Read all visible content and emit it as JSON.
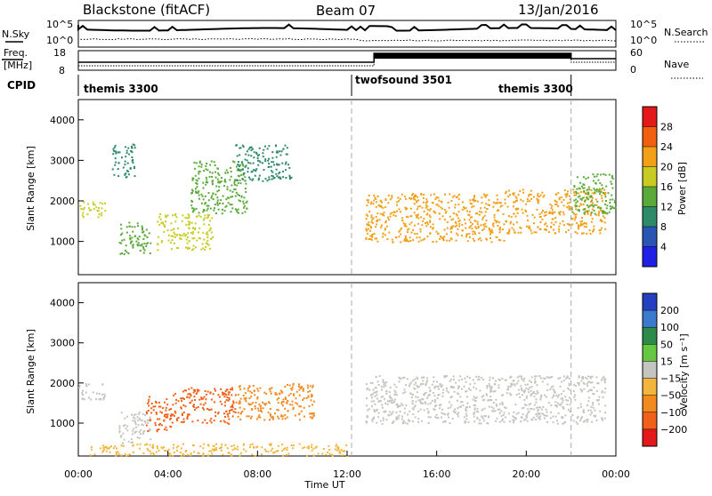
{
  "header": {
    "station": "Blackstone (fitACF)",
    "beam": "Beam 07",
    "date": "13/Jan/2016"
  },
  "top_panels": {
    "nsky_label": "N.Sky",
    "nsky_ticks": [
      "10^5",
      "10^0"
    ],
    "nsearch_label": "N.Search",
    "nsearch_ticks": [
      "10^5",
      "10^0"
    ],
    "freq_label": "Freq.",
    "freq_unit": "[MHz]",
    "freq_ticks": [
      "18",
      "8"
    ],
    "nave_label": "Nave",
    "nave_ticks": [
      "60",
      "0"
    ],
    "cpid_label": "CPID",
    "cpid_segments": [
      {
        "name": "themis 3300",
        "start_hour": 0,
        "end_hour": 12.2
      },
      {
        "name": "twofsound 3501",
        "start_hour": 12.2,
        "end_hour": 22.0
      },
      {
        "name": "themis 3300",
        "start_hour": 22.0,
        "end_hour": 24
      }
    ]
  },
  "axes": {
    "y_label": "Slant Range [km]",
    "y_ticks": [
      "4000",
      "3000",
      "2000",
      "1000"
    ],
    "x_label": "Time UT",
    "x_ticks": [
      "00:00",
      "04:00",
      "08:00",
      "12:00",
      "16:00",
      "20:00",
      "00:00"
    ]
  },
  "colorbars": {
    "power": {
      "label": "Power [dB]",
      "ticks": [
        "28",
        "24",
        "20",
        "16",
        "12",
        "8",
        "4"
      ],
      "colors": [
        "#1f1fe6",
        "#2b55b5",
        "#2f8a6a",
        "#5aaa3a",
        "#c8cc22",
        "#f2a018",
        "#f06010",
        "#e41a1a"
      ]
    },
    "velocity": {
      "label": "Velocity [m s⁻¹]",
      "ticks": [
        "200",
        "100",
        "50",
        "15",
        "−15",
        "−50",
        "−100",
        "−200"
      ],
      "colors": [
        "#2340c0",
        "#3c7ad0",
        "#2e8a4a",
        "#66c840",
        "#c4c4c0",
        "#f2b63c",
        "#f28a20",
        "#f06018",
        "#e41a1a"
      ]
    }
  },
  "chart_data": [
    {
      "type": "heatmap",
      "title": "Power",
      "xlabel": "Time UT",
      "ylabel": "Slant Range [km]",
      "xlim": [
        0,
        24
      ],
      "ylim": [
        180,
        4500
      ],
      "zlabel": "Power [dB]",
      "zlim": [
        0,
        32
      ],
      "regions": [
        {
          "t": [
            0.0,
            1.2
          ],
          "range": [
            1600,
            2000
          ],
          "power": 18
        },
        {
          "t": [
            1.5,
            2.5
          ],
          "range": [
            2600,
            3500
          ],
          "power": 10
        },
        {
          "t": [
            1.8,
            3.2
          ],
          "range": [
            700,
            1500
          ],
          "power": 14
        },
        {
          "t": [
            3.5,
            6.0
          ],
          "range": [
            800,
            1700
          ],
          "power": 18
        },
        {
          "t": [
            5.0,
            7.5
          ],
          "range": [
            1700,
            3000
          ],
          "power": 12
        },
        {
          "t": [
            7.0,
            9.5
          ],
          "range": [
            2500,
            3400
          ],
          "power": 10
        },
        {
          "t": [
            12.8,
            19.0
          ],
          "range": [
            1000,
            2200
          ],
          "power": 22
        },
        {
          "t": [
            19.0,
            23.5
          ],
          "range": [
            1200,
            2300
          ],
          "power": 22
        },
        {
          "t": [
            22.0,
            24.0
          ],
          "range": [
            1700,
            2700
          ],
          "power": 14
        }
      ]
    },
    {
      "type": "heatmap",
      "title": "Velocity",
      "xlabel": "Time UT",
      "ylabel": "Slant Range [km]",
      "xlim": [
        0,
        24
      ],
      "ylim": [
        180,
        4500
      ],
      "zlabel": "Velocity [m s⁻¹]",
      "zlim": [
        -250,
        250
      ],
      "regions": [
        {
          "t": [
            0.0,
            1.2
          ],
          "range": [
            1600,
            2000
          ],
          "velocity": 0
        },
        {
          "t": [
            1.8,
            3.2
          ],
          "range": [
            500,
            1300
          ],
          "velocity": 0
        },
        {
          "t": [
            3.0,
            4.2
          ],
          "range": [
            800,
            1700
          ],
          "velocity": -120
        },
        {
          "t": [
            4.2,
            7.0
          ],
          "range": [
            1000,
            1900
          ],
          "velocity": -150
        },
        {
          "t": [
            7.0,
            10.5
          ],
          "range": [
            1100,
            2000
          ],
          "velocity": -60
        },
        {
          "t": [
            12.8,
            23.5
          ],
          "range": [
            1000,
            2200
          ],
          "velocity": 0
        },
        {
          "t": [
            0.5,
            12.0
          ],
          "range": [
            200,
            500
          ],
          "velocity": -40
        }
      ]
    }
  ]
}
